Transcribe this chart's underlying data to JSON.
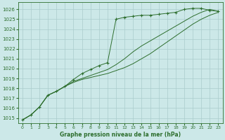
{
  "background_color": "#cce8e8",
  "grid_color": "#aacccc",
  "line_color": "#2d6e2d",
  "text_color": "#2d6e2d",
  "xlabel": "Graphe pression niveau de la mer (hPa)",
  "ylim": [
    1014.5,
    1026.7
  ],
  "xlim": [
    -0.5,
    23.5
  ],
  "yticks": [
    1015,
    1016,
    1017,
    1018,
    1019,
    1020,
    1021,
    1022,
    1023,
    1024,
    1025,
    1026
  ],
  "xticks": [
    0,
    1,
    2,
    3,
    4,
    5,
    6,
    7,
    8,
    9,
    10,
    11,
    12,
    13,
    14,
    15,
    16,
    17,
    18,
    19,
    20,
    21,
    22,
    23
  ],
  "series": [
    [
      1014.8,
      1015.3,
      1016.1,
      1017.3,
      1017.7,
      1018.2,
      1018.9,
      1019.5,
      1019.9,
      1020.3,
      1020.6,
      1025.0,
      1025.2,
      1025.3,
      1025.4,
      1025.4,
      1025.5,
      1025.6,
      1025.7,
      1026.0,
      1026.1,
      1026.1,
      1025.9,
      1025.8
    ],
    [
      1014.8,
      1015.3,
      1016.1,
      1017.3,
      1017.7,
      1018.2,
      1018.7,
      1019.0,
      1019.3,
      1019.6,
      1019.9,
      1020.4,
      1021.0,
      1021.7,
      1022.3,
      1022.8,
      1023.3,
      1023.8,
      1024.3,
      1024.8,
      1025.3,
      1025.7,
      1026.0,
      1025.8
    ],
    [
      1014.8,
      1015.3,
      1016.1,
      1017.3,
      1017.7,
      1018.2,
      1018.6,
      1018.9,
      1019.1,
      1019.3,
      1019.5,
      1019.8,
      1020.1,
      1020.5,
      1021.0,
      1021.5,
      1022.1,
      1022.7,
      1023.3,
      1023.9,
      1024.5,
      1025.0,
      1025.4,
      1025.7
    ]
  ]
}
